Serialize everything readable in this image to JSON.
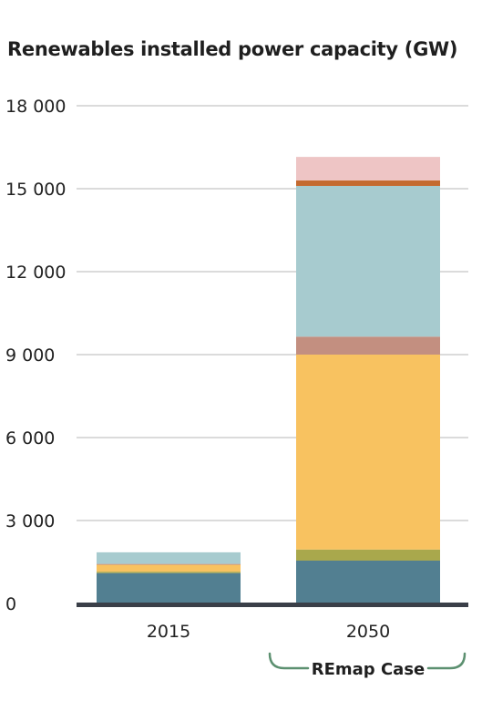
{
  "chart_data": {
    "type": "bar",
    "stacked": true,
    "title": "Renewables installed power capacity (GW)",
    "xlabel": "",
    "ylabel": "",
    "categories": [
      "2015",
      "2050"
    ],
    "ylim": [
      0,
      18000
    ],
    "yticks": [
      0,
      3000,
      6000,
      9000,
      12000,
      15000,
      18000
    ],
    "ytick_labels": [
      "0",
      "3 000",
      "6 000",
      "9 000",
      "12 000",
      "15 000",
      "18 000"
    ],
    "grid": true,
    "series": [
      {
        "color": "#527f91",
        "values": [
          1100,
          1550
        ]
      },
      {
        "color": "#a9a84c",
        "values": [
          50,
          400
        ]
      },
      {
        "color": "#f8c260",
        "values": [
          250,
          7050
        ]
      },
      {
        "color": "#c38f80",
        "values": [
          30,
          650
        ]
      },
      {
        "color": "#a7cbcf",
        "values": [
          420,
          5450
        ]
      },
      {
        "color": "#c46a30",
        "values": [
          0,
          200
        ]
      },
      {
        "color": "#eec5c5",
        "values": [
          0,
          850
        ]
      }
    ],
    "annotations": [
      {
        "text": "REmap Case",
        "target_category": "2050"
      }
    ]
  }
}
